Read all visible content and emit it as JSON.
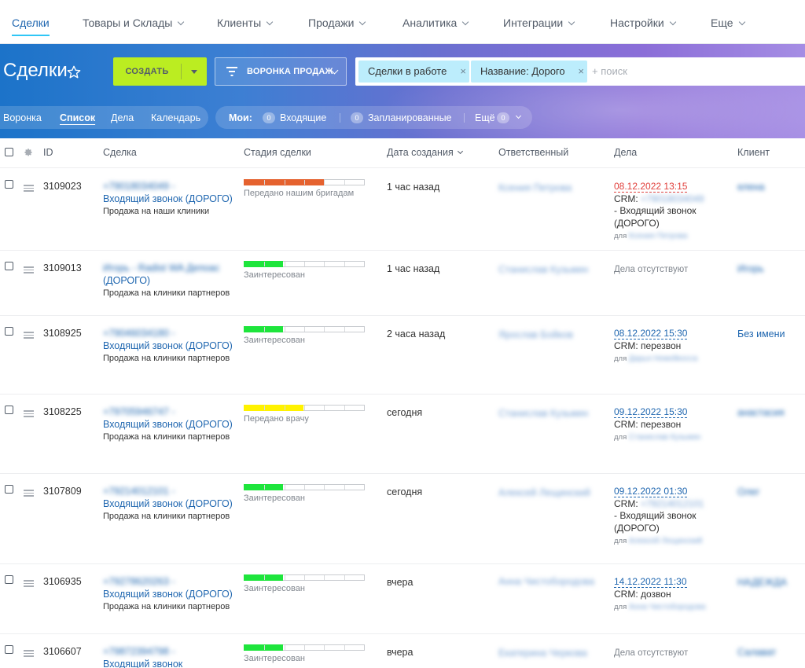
{
  "nav": {
    "items": [
      {
        "label": "Сделки",
        "active": true
      },
      {
        "label": "Товары и Склады",
        "active": false
      },
      {
        "label": "Клиенты",
        "active": false
      },
      {
        "label": "Продажи",
        "active": false
      },
      {
        "label": "Аналитика",
        "active": false
      },
      {
        "label": "Интеграции",
        "active": false
      },
      {
        "label": "Настройки",
        "active": false
      },
      {
        "label": "Еще",
        "active": false
      }
    ]
  },
  "header": {
    "title": "Сделки",
    "create_label": "СОЗДАТЬ",
    "funnel_label": "ВОРОНКА ПРОДАЖ",
    "search": {
      "chips": [
        "Сделки в работе",
        "Название: Дорого"
      ],
      "placeholder": "+ поиск"
    }
  },
  "views": [
    "Воронка",
    "Список",
    "Дела",
    "Календарь"
  ],
  "active_view": "Список",
  "filters": {
    "mine_label": "Мои:",
    "incoming_label": "Входящие",
    "incoming_count": "0",
    "planned_label": "Запланированные",
    "planned_count": "0",
    "more_label": "Ещё",
    "more_count": "0"
  },
  "colors": {
    "accent": "#2067b0",
    "create_button": "#bbed21",
    "stage_orange": "#e5622f",
    "stage_green": "#1ee53c",
    "stage_yellow": "#fff200",
    "overdue_red": "#e1413d"
  },
  "columns": [
    "ID",
    "Сделка",
    "Стадия сделки",
    "Дата создания",
    "Ответственный",
    "Дела",
    "Клиент"
  ],
  "rows": [
    {
      "id": "3109023",
      "title_hidden": "+79018034049 -",
      "title": "Входящий звонок (ДОРОГО)",
      "subtitle": "Продажа на наши клиники",
      "stage_name": "Передано нашим бригадам",
      "stage_progress": 0.67,
      "stage_color": "#e5622f",
      "date": "1 час назад",
      "responsible_hidden": "Ксения Петрова",
      "activity_date": "08.12.2022 13:15",
      "activity_overdue": true,
      "activity_text": "CRM: +79018034049",
      "activity_text2": "- Входящий звонок (ДОРОГО)",
      "activity_for": "для",
      "activity_for_hidden": "Ксения Петрова",
      "client": "елена",
      "client_hidden": true
    },
    {
      "id": "3109013",
      "title_hidden": "Игорь - Radist WA Депоас",
      "title": "(ДОРОГО)",
      "subtitle": "Продажа на клиники партнеров",
      "stage_name": "Заинтересован",
      "stage_progress": 0.33,
      "stage_color": "#1ee53c",
      "date": "1 час назад",
      "responsible_hidden": "Станислав Кузьмин",
      "activity_none": "Дела отсутствуют",
      "client": "Игорь",
      "client_hidden": true
    },
    {
      "id": "3108925",
      "title_hidden": "+79046034180 -",
      "title": "Входящий звонок (ДОРОГО)",
      "subtitle": "Продажа на клиники партнеров",
      "stage_name": "Заинтересован",
      "stage_progress": 0.33,
      "stage_color": "#1ee53c",
      "date": "2 часа назад",
      "responsible_hidden": "Ярослав Бойков",
      "activity_date": "08.12.2022 15:30",
      "activity_overdue": false,
      "activity_text": "CRM: перезвон",
      "activity_for": "для",
      "activity_for_hidden": "Дарья Нежейкосса",
      "client": "Без имени",
      "client_hidden": false
    },
    {
      "id": "3108225",
      "title_hidden": "+79705946747 -",
      "title": "Входящий звонок (ДОРОГО)",
      "subtitle": "Продажа на клиники партнеров",
      "stage_name": "Передано врачу",
      "stage_progress": 0.5,
      "stage_color": "#fff200",
      "date": "сегодня",
      "responsible_hidden": "Станислав Кузьмин",
      "activity_date": "09.12.2022 15:30",
      "activity_overdue": false,
      "activity_text": "CRM: перезвон",
      "activity_for": "для",
      "activity_for_hidden": "Станислав Кузьмин",
      "client": "анастасия",
      "client_hidden": true
    },
    {
      "id": "3107809",
      "title_hidden": "+79214012101 -",
      "title": "Входящий звонок (ДОРОГО)",
      "subtitle": "Продажа на клиники партнеров",
      "stage_name": "Заинтересован",
      "stage_progress": 0.33,
      "stage_color": "#1ee53c",
      "date": "сегодня",
      "responsible_hidden": "Алексей Лещинский",
      "activity_date": "09.12.2022 01:30",
      "activity_overdue": false,
      "activity_text": "CRM: +79214012101",
      "activity_text2": "- Входящий звонок (ДОРОГО)",
      "activity_for": "для",
      "activity_for_hidden": "Алексей Лещинский",
      "client": "Олег",
      "client_hidden": true
    },
    {
      "id": "3106935",
      "title_hidden": "+79278620263 -",
      "title": "Входящий звонок (ДОРОГО)",
      "subtitle": "Продажа на клиники партнеров",
      "stage_name": "Заинтересован",
      "stage_progress": 0.33,
      "stage_color": "#1ee53c",
      "date": "вчера",
      "responsible_hidden": "Анна Чистобородова",
      "activity_date": "14.12.2022 11:30",
      "activity_overdue": false,
      "activity_text": "CRM: дозвон",
      "activity_for": "для",
      "activity_for_hidden": "Анна Чистобородова",
      "client": "НАДЕЖДА",
      "client_hidden": true
    },
    {
      "id": "3106607",
      "title_hidden": "+79872394798 -",
      "title": "Входящий звонок",
      "subtitle": "",
      "stage_name": "Заинтересован",
      "stage_progress": 0.33,
      "stage_color": "#1ee53c",
      "date": "вчера",
      "responsible_hidden": "Екатерина Черкова",
      "activity_none": "Дела отсутствуют",
      "client": "Салават",
      "client_hidden": true
    }
  ]
}
